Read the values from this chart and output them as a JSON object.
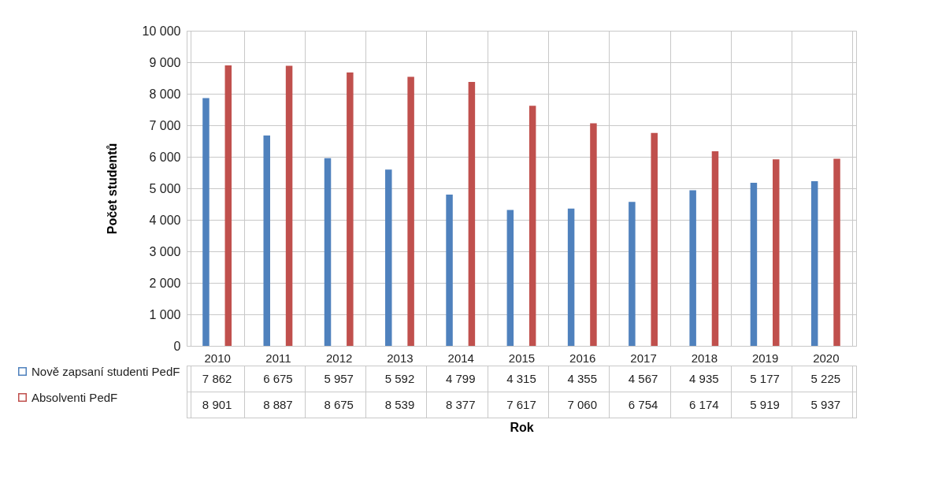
{
  "chart_data": {
    "type": "bar",
    "xlabel": "Rok",
    "ylabel": "Počet studentů",
    "categories": [
      "2010",
      "2011",
      "2012",
      "2013",
      "2014",
      "2015",
      "2016",
      "2017",
      "2018",
      "2019",
      "2020"
    ],
    "series": [
      {
        "name": "Nově zapsaní studenti PedF",
        "color": "#4f81bd",
        "values": [
          7862,
          6675,
          5957,
          5592,
          4799,
          4315,
          4355,
          4567,
          4935,
          5177,
          5225
        ]
      },
      {
        "name": "Absolventi PedF",
        "color": "#c0504d",
        "values": [
          8901,
          8887,
          8675,
          8539,
          8377,
          7617,
          7060,
          6754,
          6174,
          5919,
          5937
        ]
      }
    ],
    "ylim": [
      0,
      10000
    ],
    "yticks": [
      0,
      1000,
      2000,
      3000,
      4000,
      5000,
      6000,
      7000,
      8000,
      9000,
      10000
    ],
    "grid": true,
    "legend": "bottom",
    "data_labels": true
  }
}
